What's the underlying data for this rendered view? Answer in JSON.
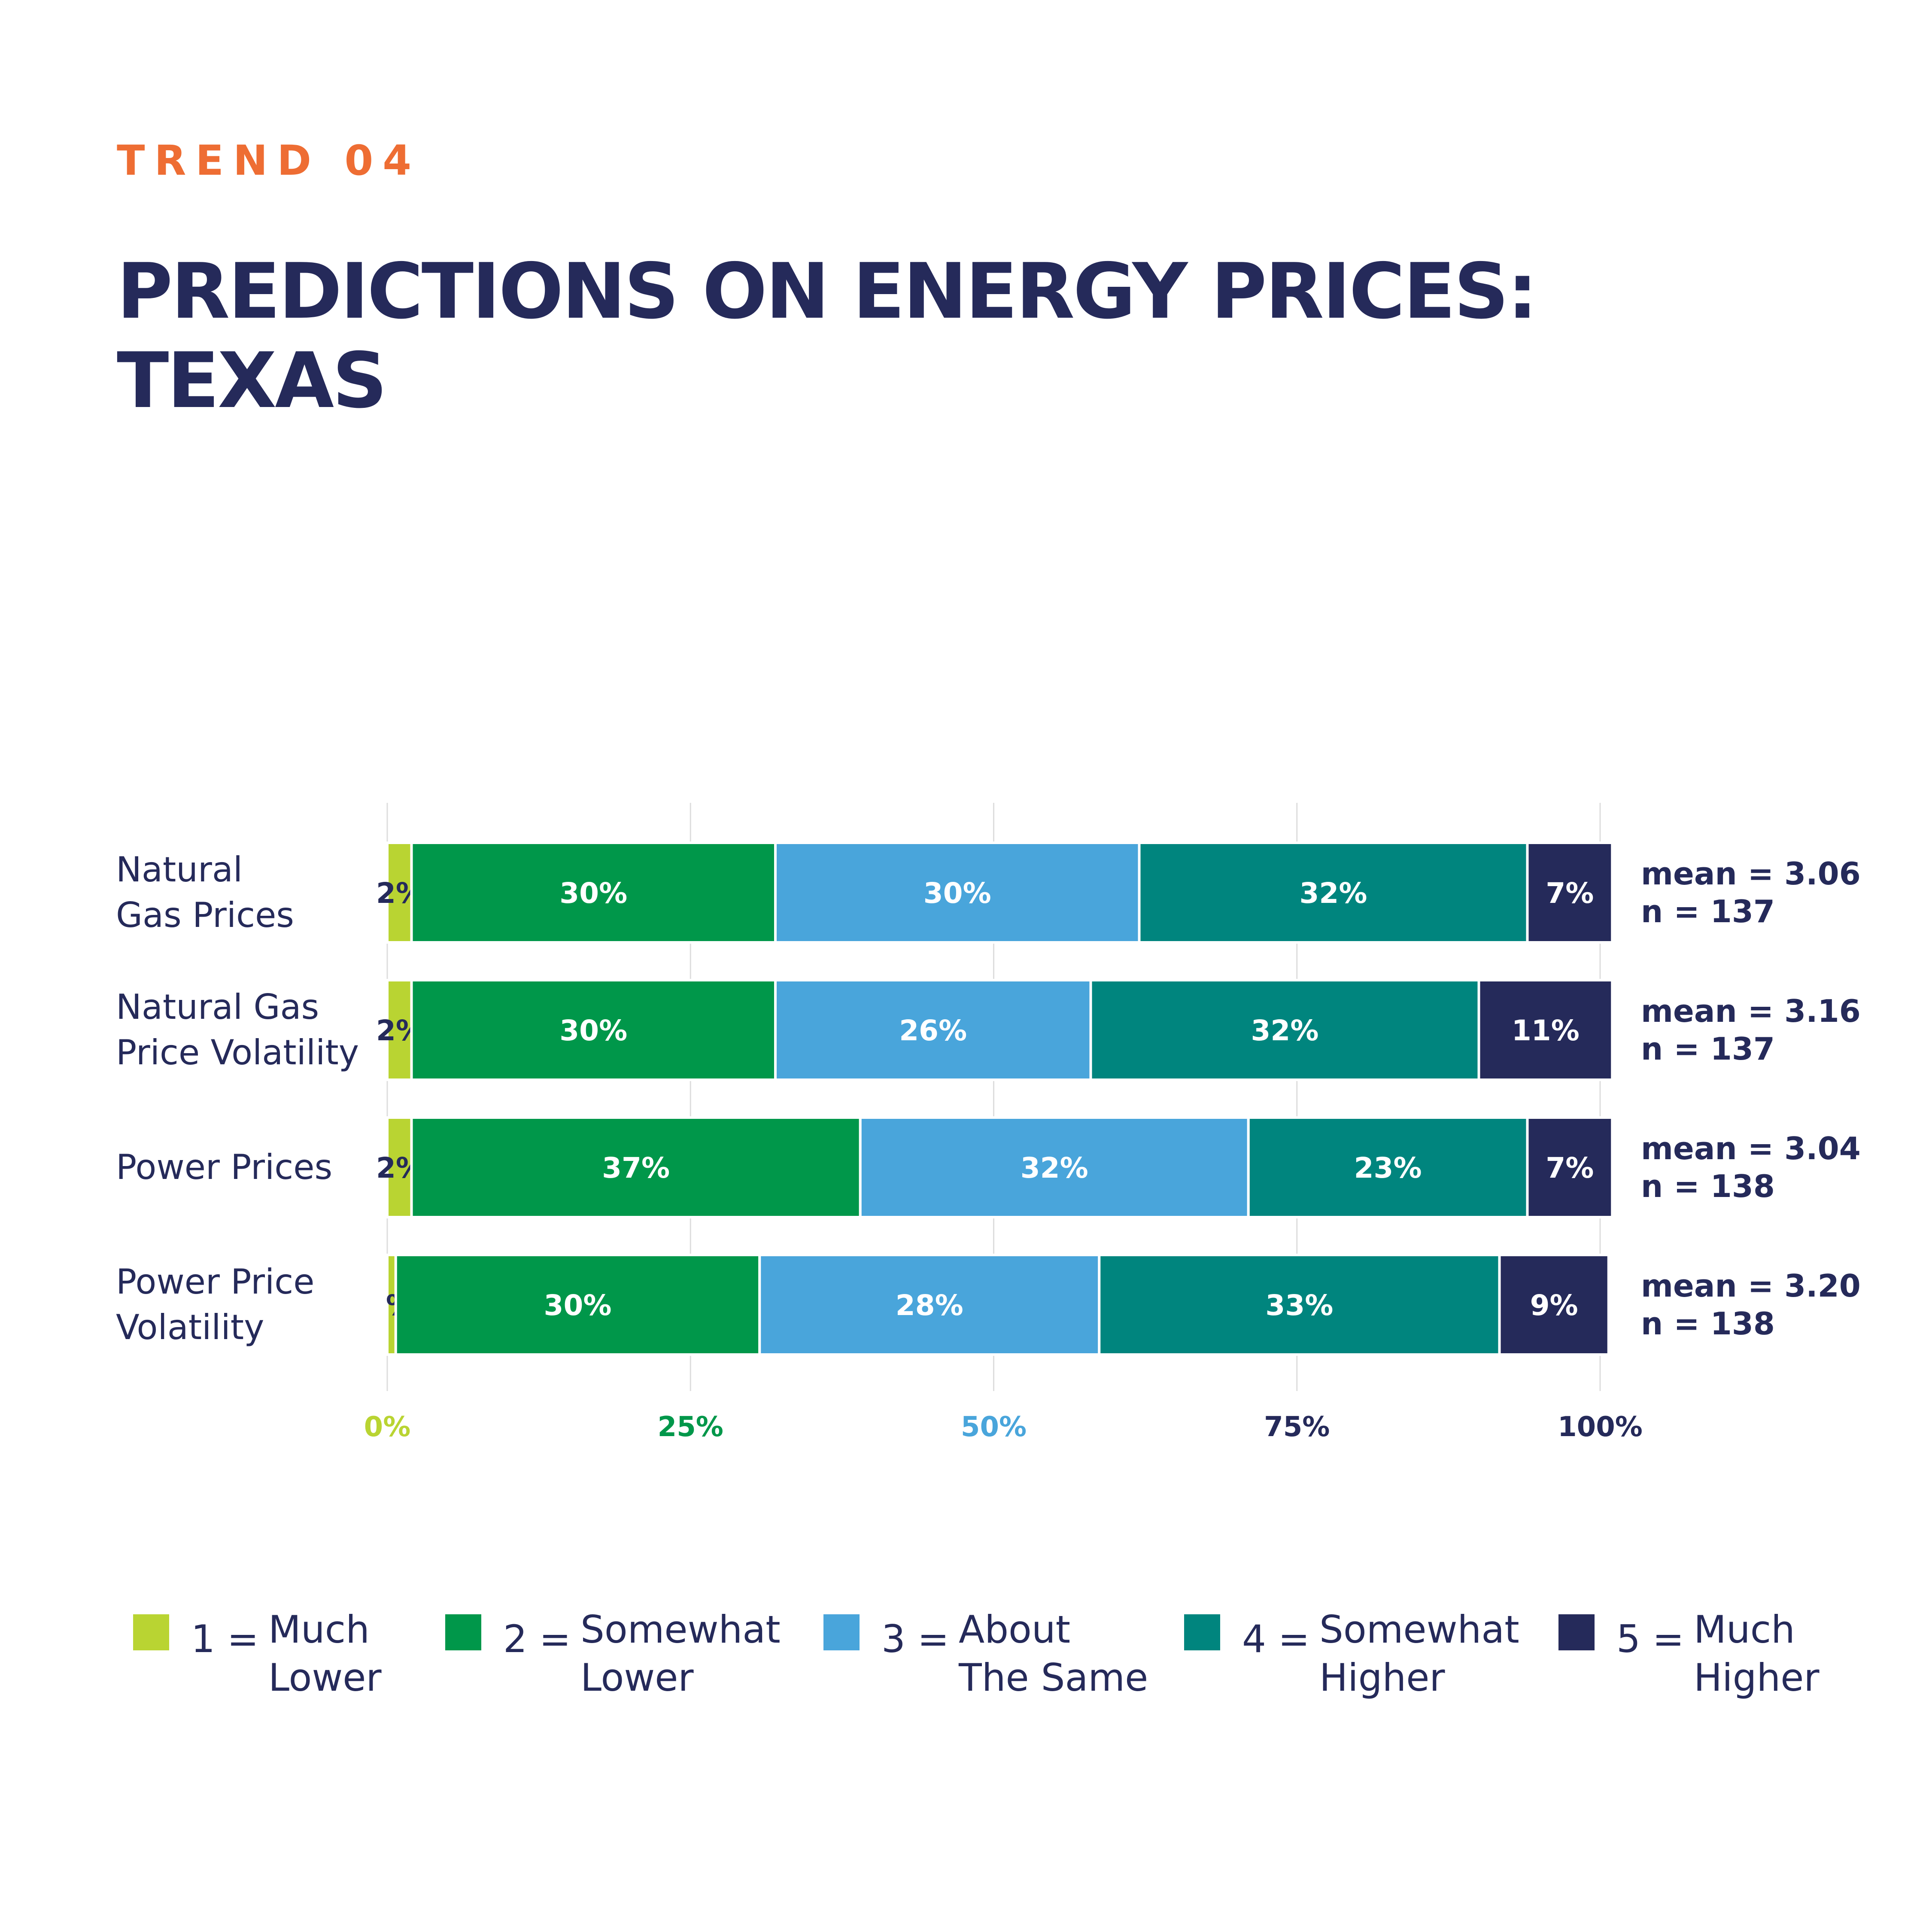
{
  "header": {
    "eyebrow": "TREND 04",
    "title_line1": "PREDICTIONS ON ENERGY PRICES:",
    "title_line2": "TEXAS"
  },
  "chart_data": {
    "type": "bar",
    "orientation": "horizontal",
    "stacked": true,
    "categories": [
      "Natural Gas Prices",
      "Natural Gas Price Volatility",
      "Power Prices",
      "Power Price Volatility"
    ],
    "category_labels": [
      [
        "Natural",
        "Gas Prices"
      ],
      [
        "Natural Gas",
        "Price Volatility"
      ],
      [
        "Power Prices"
      ],
      [
        "Power Price",
        "Volatility"
      ]
    ],
    "series": [
      {
        "name": "1 = Much Lower",
        "color": "#b9d432",
        "values": [
          2,
          2,
          2,
          0.7
        ],
        "labels": [
          "2%",
          "2%",
          "2%",
          "%"
        ]
      },
      {
        "name": "2 = Somewhat Lower",
        "color": "#00974a",
        "values": [
          30,
          30,
          37,
          30
        ],
        "labels": [
          "30%",
          "30%",
          "37%",
          "30%"
        ]
      },
      {
        "name": "3 = About The Same",
        "color": "#49a5db",
        "values": [
          30,
          26,
          32,
          28
        ],
        "labels": [
          "30%",
          "26%",
          "32%",
          "28%"
        ]
      },
      {
        "name": "4 = Somewhat Higher",
        "color": "#00857e",
        "values": [
          32,
          32,
          23,
          33
        ],
        "labels": [
          "32%",
          "32%",
          "23%",
          "33%"
        ]
      },
      {
        "name": "5 = Much Higher",
        "color": "#252a5a",
        "values": [
          7,
          11,
          7,
          9
        ],
        "labels": [
          "7%",
          "11%",
          "7%",
          "9%"
        ]
      }
    ],
    "x_ticks": [
      "0%",
      "25%",
      "50%",
      "75%",
      "100%"
    ],
    "x_tick_colors": [
      "#b9d432",
      "#00974a",
      "#49a5db",
      "#252a5a",
      "#252a5a"
    ],
    "xlim": [
      0,
      100
    ],
    "grid": true,
    "stats": [
      {
        "mean": "mean = 3.06",
        "n": "n = 137"
      },
      {
        "mean": "mean = 3.16",
        "n": "n = 137"
      },
      {
        "mean": "mean = 3.04",
        "n": "n = 138"
      },
      {
        "mean": "mean = 3.20",
        "n": "n = 138"
      }
    ],
    "legend_placement": "bottom"
  },
  "legend": [
    {
      "num": "1 =",
      "line1": "Much",
      "line2": "Lower",
      "color": "#b9d432"
    },
    {
      "num": "2 =",
      "line1": "Somewhat",
      "line2": "Lower",
      "color": "#00974a"
    },
    {
      "num": "3 =",
      "line1": "About",
      "line2": "The Same",
      "color": "#49a5db"
    },
    {
      "num": "4 =",
      "line1": "Somewhat",
      "line2": "Higher",
      "color": "#00857e"
    },
    {
      "num": "5 =",
      "line1": "Much",
      "line2": "Higher",
      "color": "#252a5a"
    }
  ]
}
